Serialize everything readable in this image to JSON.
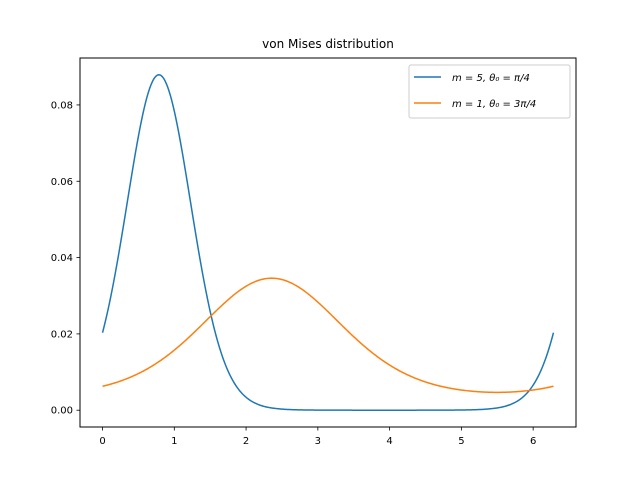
{
  "chart_data": {
    "type": "line",
    "title": "von Mises distribution",
    "xlabel": "",
    "ylabel": "",
    "xlim": [
      -0.314,
      6.597
    ],
    "ylim": [
      -0.0044,
      0.0923
    ],
    "grid": false,
    "legend_position": "upper right",
    "xticks": [
      0,
      1,
      2,
      3,
      4,
      5,
      6
    ],
    "xtick_labels": [
      "0",
      "1",
      "2",
      "3",
      "4",
      "5",
      "6"
    ],
    "yticks": [
      0.0,
      0.02,
      0.04,
      0.06,
      0.08
    ],
    "ytick_labels": [
      "0.00",
      "0.02",
      "0.04",
      "0.06",
      "0.08"
    ],
    "x_range": [
      0,
      6.2832
    ],
    "series": [
      {
        "name": "m = 5, θ0 = π/4",
        "legend_label": "m = 5, θ₀ = π/4",
        "color": "#1f77b4",
        "kappa": 5,
        "mu": 0.7854,
        "x": [
          0,
          0.25,
          0.5,
          0.785,
          1.0,
          1.25,
          1.5,
          1.75,
          2.0,
          2.5,
          3.0,
          3.5,
          4.0,
          4.5,
          5.0,
          5.5,
          5.75,
          6.0,
          6.283
        ],
        "y": [
          0.0203,
          0.0405,
          0.0707,
          0.0879,
          0.0788,
          0.0508,
          0.0238,
          0.0087,
          0.0027,
          0.0003,
          3e-05,
          1e-05,
          1e-05,
          3e-05,
          0.0003,
          0.0021,
          0.0057,
          0.0117,
          0.0203
        ]
      },
      {
        "name": "m = 1, θ0 = 3π/4",
        "legend_label": "m = 1, θ₀ = 3π/4",
        "color": "#ff7f0e",
        "kappa": 1,
        "mu": 2.3562,
        "x": [
          0,
          0.5,
          1.0,
          1.5,
          2.0,
          2.356,
          2.5,
          3.0,
          3.5,
          4.0,
          4.5,
          5.0,
          5.5,
          6.0,
          6.283
        ],
        "y": [
          0.0062,
          0.0083,
          0.0134,
          0.0227,
          0.0321,
          0.0346,
          0.0342,
          0.0276,
          0.0187,
          0.0117,
          0.0073,
          0.0053,
          0.0047,
          0.0052,
          0.0062
        ]
      }
    ]
  }
}
